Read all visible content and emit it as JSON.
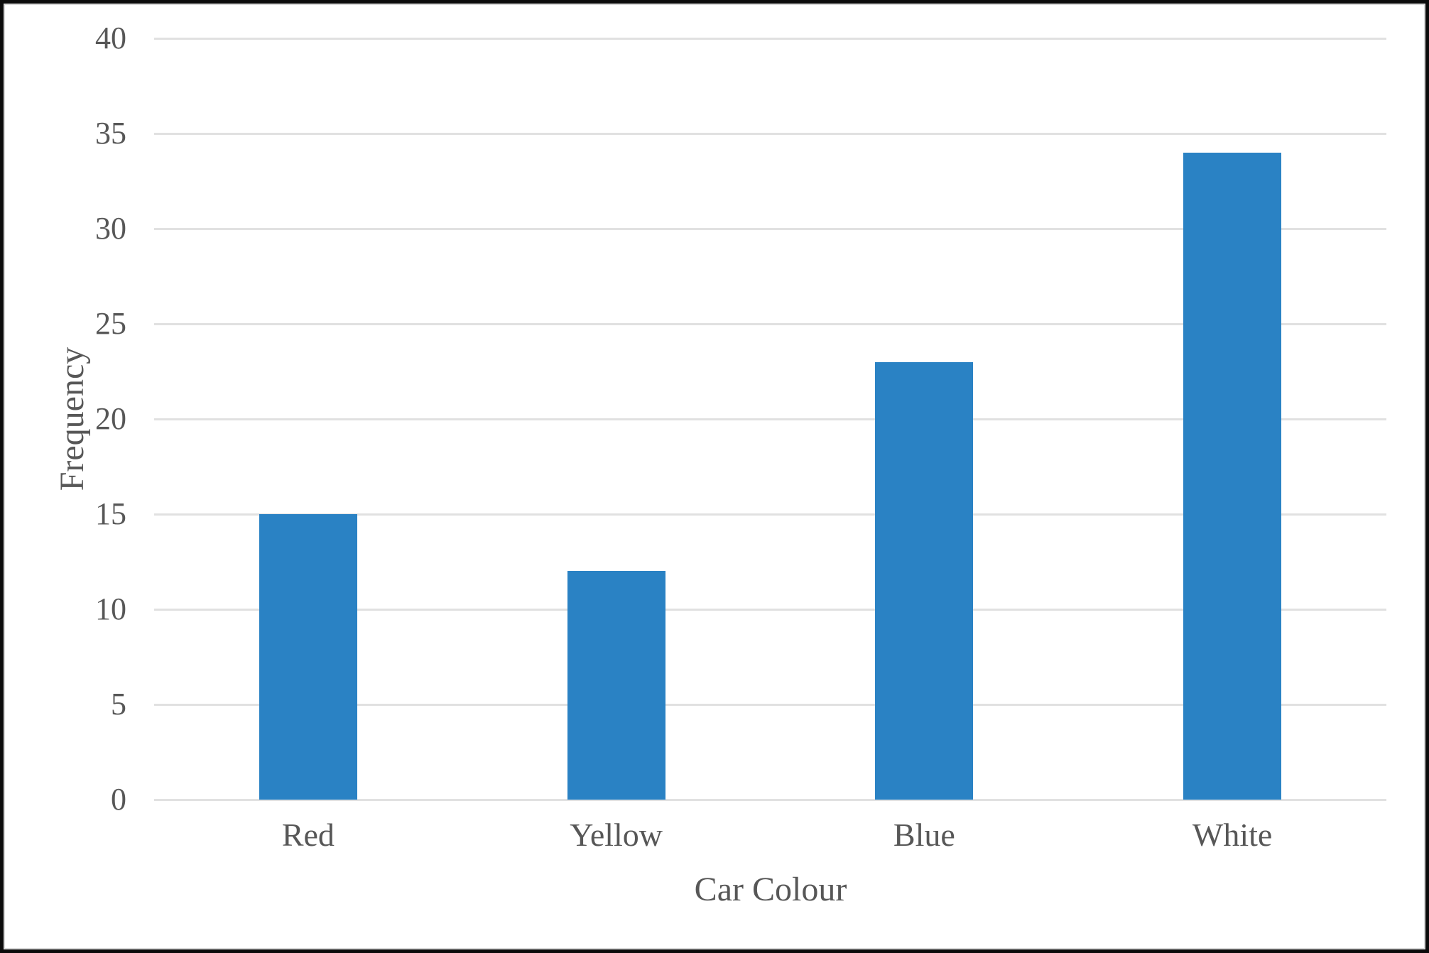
{
  "chart_data": {
    "type": "bar",
    "categories": [
      "Red",
      "Yellow",
      "Blue",
      "White"
    ],
    "values": [
      15,
      12,
      23,
      34
    ],
    "title": "",
    "xlabel": "Car Colour",
    "ylabel": "Frequency",
    "ylim": [
      0,
      40
    ],
    "yticks": [
      0,
      5,
      10,
      15,
      20,
      25,
      30,
      35,
      40
    ],
    "grid": "horizontal-only",
    "legend": "none",
    "bar_color": "#2a82c4"
  },
  "colors": {
    "bar": "#2a82c4",
    "label_text": "#575757",
    "gridline": "#e1e1e1",
    "background": "#ffffff",
    "frame_border": "#0b0b0b"
  }
}
